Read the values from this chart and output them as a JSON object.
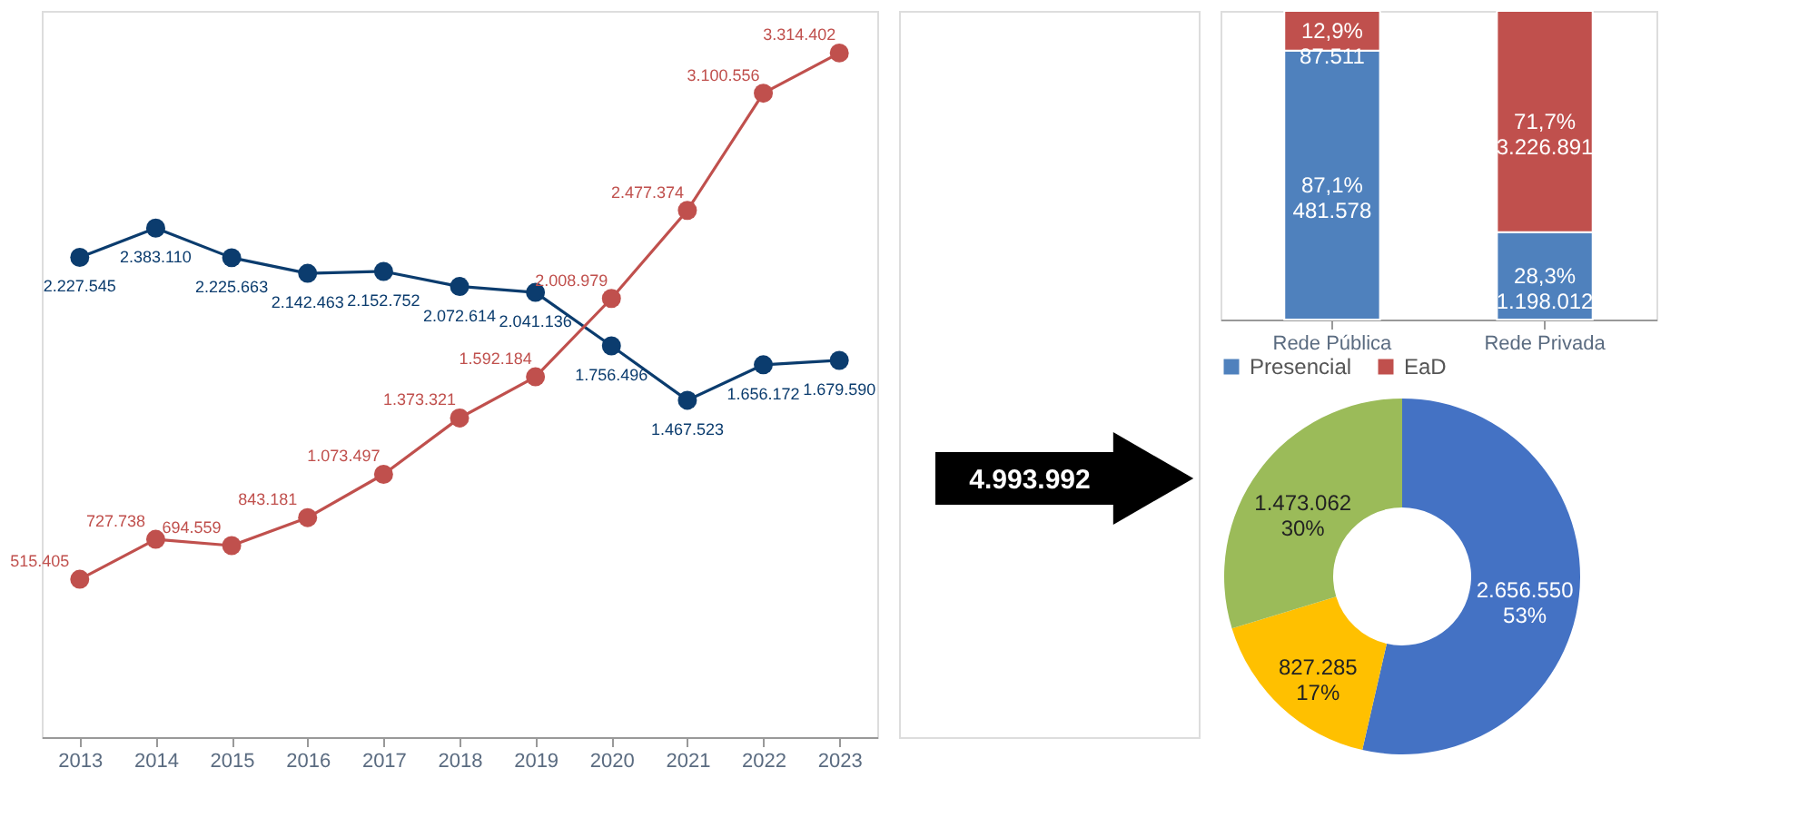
{
  "chart_data": [
    {
      "type": "line",
      "categories": [
        "2013",
        "2014",
        "2015",
        "2016",
        "2017",
        "2018",
        "2019",
        "2020",
        "2021",
        "2022",
        "2023"
      ],
      "marker": "circle",
      "line_style": "solid",
      "tick_labels": "x",
      "series": [
        {
          "color": "#0b3c6e",
          "values": [
            2227545,
            2383110,
            2225663,
            2142463,
            2152752,
            2072614,
            2041136,
            1756496,
            1467523,
            1656172,
            1679590
          ],
          "value_labels": [
            "2.227.545",
            "2.383.110",
            "2.225.663",
            "2.142.463",
            "2.152.752",
            "2.072.614",
            "2.041.136",
            "1.756.496",
            "1.467.523",
            "1.656.172",
            "1.679.590"
          ]
        },
        {
          "color": "#c0504d",
          "values": [
            515405,
            727738,
            694559,
            843181,
            1073497,
            1373321,
            1592184,
            2008979,
            2477374,
            3100556,
            3314402
          ],
          "value_labels": [
            "515.405",
            "727.738",
            "694.559",
            "843.181",
            "1.073.497",
            "1.373.321",
            "1.592.184",
            "2.008.979",
            "2.477.374",
            "3.100.556",
            "3.314.402"
          ]
        }
      ]
    },
    {
      "type": "bar",
      "stacked": true,
      "categories": [
        "Rede Pública",
        "Rede Privada"
      ],
      "legend": "bottom",
      "tick_labels": "x",
      "series": [
        {
          "name": "Presencial",
          "color": "#4f81bd",
          "values": [
            87.1,
            28.3
          ],
          "value_labels": [
            "87,1%\n481.578",
            "28,3%\n1.198.012"
          ]
        },
        {
          "name": "EaD",
          "color": "#c0504d",
          "values": [
            12.9,
            71.7
          ],
          "value_labels": [
            "12,9%\n87.511",
            "71,7%\n3.226.891"
          ]
        }
      ]
    },
    {
      "type": "donut",
      "categories": [
        null,
        null,
        null
      ],
      "values": [
        2656550,
        827285,
        1473062
      ],
      "colors": [
        "#4472c4",
        "#ffc000",
        "#9bbb59"
      ],
      "value_labels": [
        "2.656.550\n53%",
        "827.285\n17%",
        "1.473.062\n30%"
      ],
      "annotations": [
        "4.993.992"
      ]
    }
  ]
}
